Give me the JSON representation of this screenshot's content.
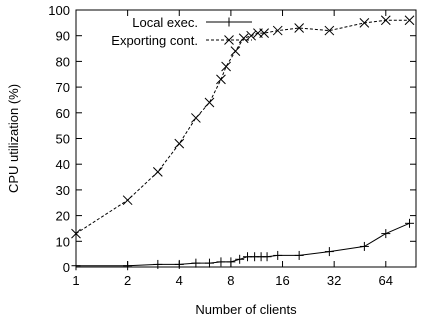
{
  "chart_data": {
    "type": "line",
    "xlabel": "Number of clients",
    "ylabel": "CPU utilization (%)",
    "xscale": "log2",
    "xlim": [
      1,
      96
    ],
    "ylim": [
      0,
      100
    ],
    "x_ticks": [
      1,
      2,
      4,
      8,
      16,
      32,
      64
    ],
    "y_ticks": [
      0,
      10,
      20,
      30,
      40,
      50,
      60,
      70,
      80,
      90,
      100
    ],
    "grid": false,
    "legend_position": "top-left",
    "series": [
      {
        "name": "Local exec.",
        "line_style": "solid",
        "marker": "plus",
        "x": [
          1,
          2,
          3,
          4,
          5,
          6,
          7,
          8,
          9,
          10,
          11,
          12,
          13,
          15,
          20,
          30,
          48,
          64,
          88
        ],
        "y": [
          0.5,
          0.5,
          1,
          1,
          1.5,
          1.5,
          2,
          2,
          3,
          4,
          4,
          4,
          4,
          4.5,
          4.5,
          6,
          8,
          13,
          17
        ]
      },
      {
        "name": "Exporting cont.",
        "line_style": "dashed",
        "marker": "x",
        "x": [
          1,
          2,
          3,
          4,
          5,
          6,
          7,
          7.5,
          8.5,
          9.5,
          10.5,
          11.5,
          12.5,
          15,
          20,
          30,
          48,
          64,
          88
        ],
        "y": [
          13,
          26,
          37,
          48,
          58,
          64,
          73,
          78,
          84,
          89,
          90,
          91,
          91,
          92,
          93,
          92,
          95,
          96,
          96
        ]
      }
    ]
  }
}
